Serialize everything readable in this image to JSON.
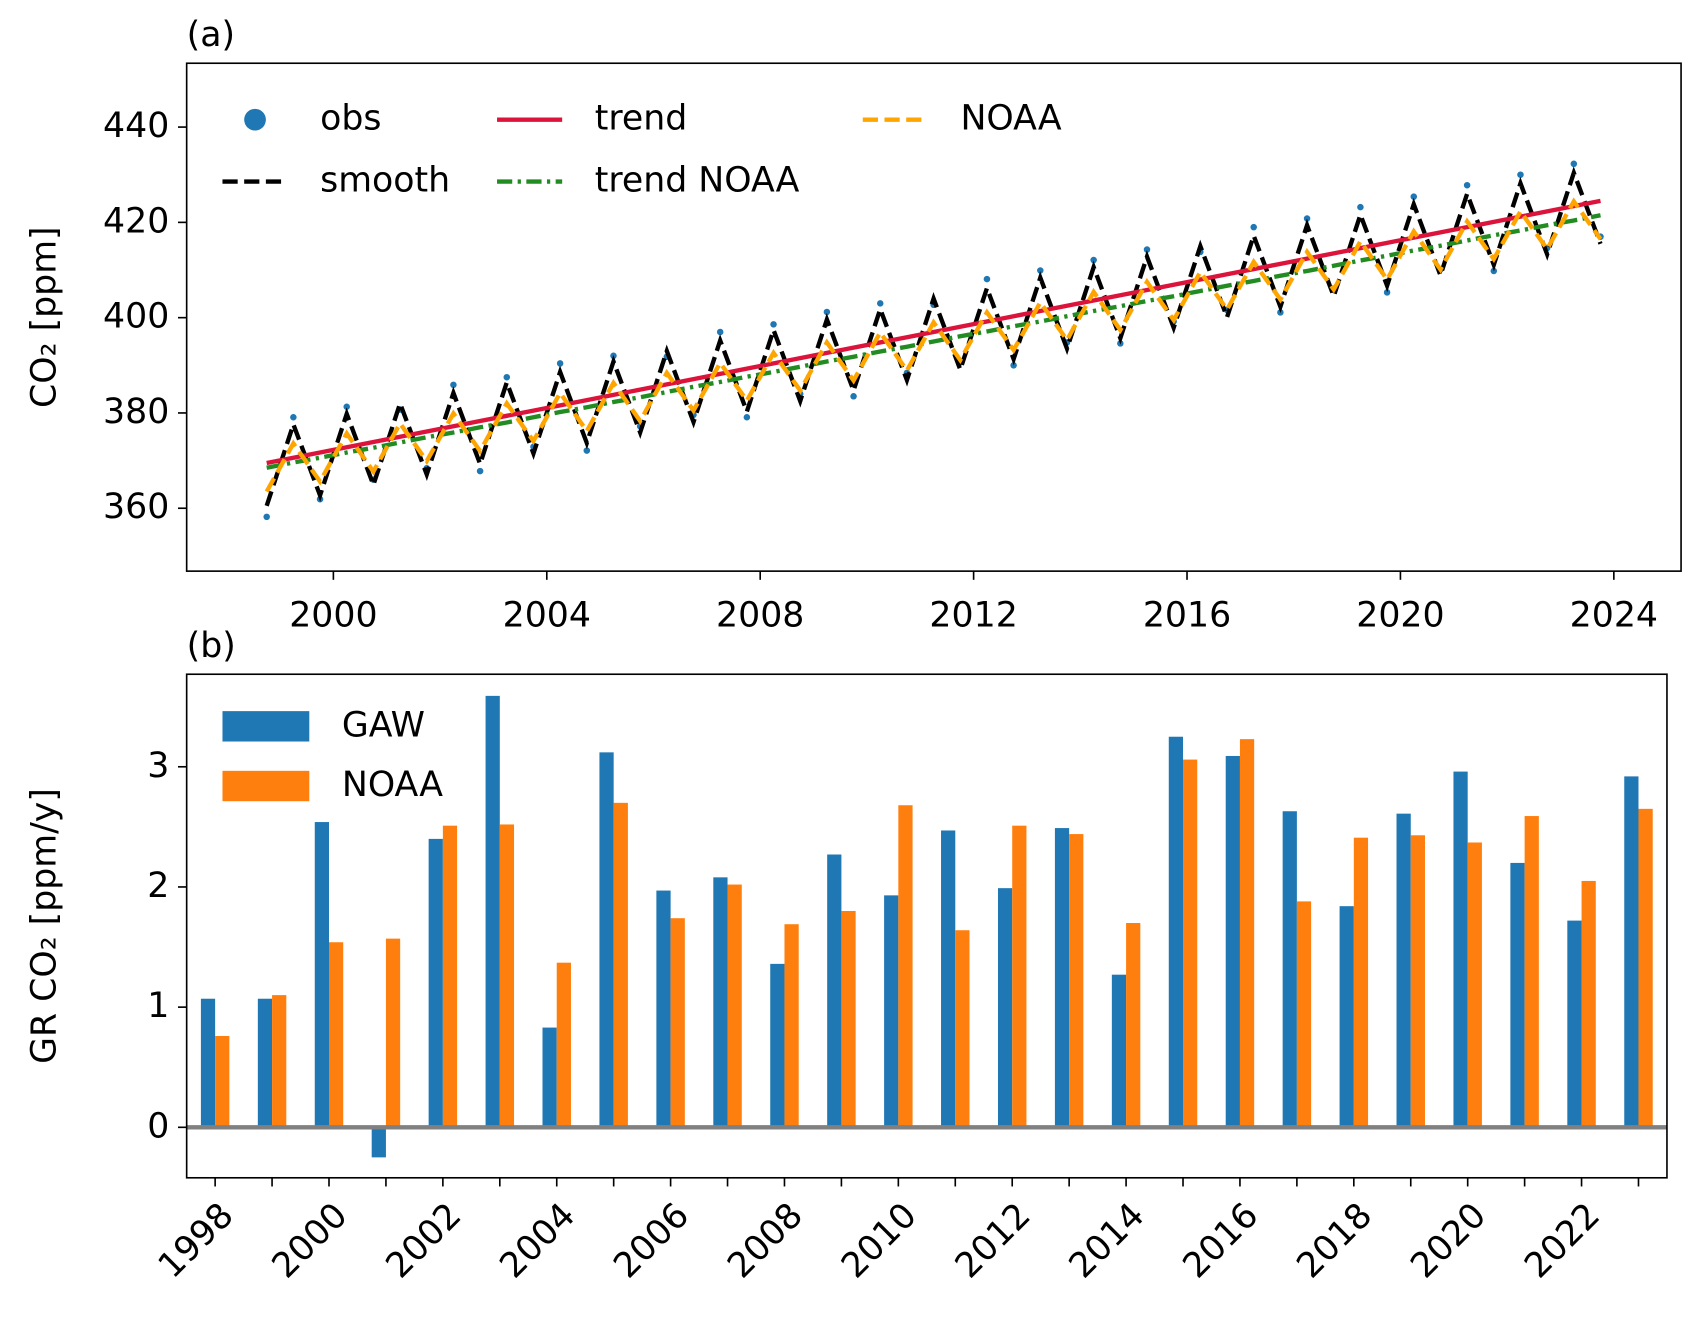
{
  "chart_data": [
    {
      "type": "line",
      "title": "(a)",
      "y_label": "CO₂ [ppm]",
      "x": [
        1998.75,
        1999.25,
        1999.75,
        2000.25,
        2000.75,
        2001.25,
        2001.75,
        2002.25,
        2002.75,
        2003.25,
        2003.75,
        2004.25,
        2004.75,
        2005.25,
        2005.75,
        2006.25,
        2006.75,
        2007.25,
        2007.75,
        2008.25,
        2008.75,
        2009.25,
        2009.75,
        2010.25,
        2010.75,
        2011.25,
        2011.75,
        2012.25,
        2012.75,
        2013.25,
        2013.75,
        2014.25,
        2014.75,
        2015.25,
        2015.75,
        2016.25,
        2016.75,
        2017.25,
        2017.75,
        2018.25,
        2018.75,
        2019.25,
        2019.75,
        2020.25,
        2020.75,
        2021.25,
        2021.75,
        2022.25,
        2022.75,
        2023.25,
        2023.75
      ],
      "series": [
        {
          "name": "obs",
          "color": "#1f77b4",
          "style": "dot",
          "values": [
            358.2,
            379.1,
            361.9,
            381.3,
            366.0,
            380.7,
            368.4,
            385.9,
            367.8,
            387.5,
            372.9,
            390.4,
            372.1,
            392.0,
            377.2,
            391.8,
            379.6,
            397.0,
            379.1,
            398.6,
            384.0,
            401.2,
            383.5,
            403.0,
            388.4,
            402.7,
            390.6,
            408.1,
            390.0,
            409.9,
            394.8,
            412.1,
            394.6,
            414.3,
            399.2,
            413.8,
            401.6,
            419.0,
            401.1,
            420.8,
            406.0,
            423.2,
            405.3,
            425.4,
            410.1,
            427.8,
            409.8,
            430.0,
            414.6,
            432.3,
            417.0
          ]
        },
        {
          "name": "smooth",
          "color": "#000000",
          "style": "dashed",
          "values": [
            360.5,
            377.6,
            362.7,
            379.8,
            364.9,
            382.0,
            367.1,
            384.2,
            369.3,
            386.4,
            371.5,
            388.6,
            373.7,
            390.8,
            375.9,
            393.0,
            378.1,
            395.2,
            380.3,
            397.4,
            382.5,
            399.6,
            384.7,
            401.8,
            386.9,
            404.0,
            389.1,
            406.2,
            391.3,
            408.4,
            393.5,
            410.6,
            395.7,
            412.8,
            397.9,
            415.0,
            400.1,
            417.2,
            402.3,
            419.4,
            404.5,
            421.6,
            406.7,
            423.8,
            408.9,
            426.0,
            411.1,
            428.2,
            413.3,
            430.4,
            415.5
          ]
        },
        {
          "name": "trend",
          "color": "#dc143c",
          "style": "solid",
          "values": [
            369.5,
            370.6,
            371.7,
            372.8,
            373.9,
            375.0,
            376.1,
            377.2,
            378.3,
            379.4,
            380.5,
            381.6,
            382.7,
            383.8,
            384.9,
            386.0,
            387.1,
            388.2,
            389.3,
            390.4,
            391.5,
            392.6,
            393.7,
            394.8,
            395.9,
            397.0,
            398.1,
            399.2,
            400.3,
            401.4,
            402.5,
            403.6,
            404.7,
            405.8,
            406.9,
            408.0,
            409.1,
            410.2,
            411.3,
            412.4,
            413.5,
            414.6,
            415.7,
            416.8,
            417.9,
            419.0,
            420.1,
            421.2,
            422.3,
            423.4,
            424.5
          ]
        },
        {
          "name": "trend NOAA",
          "color": "#228b22",
          "style": "dashdot",
          "values": [
            368.5,
            369.6,
            370.6,
            371.7,
            372.7,
            373.8,
            374.9,
            375.9,
            377.0,
            378.0,
            379.1,
            380.2,
            381.2,
            382.3,
            383.3,
            384.4,
            385.5,
            386.5,
            387.6,
            388.6,
            389.7,
            390.8,
            391.8,
            392.9,
            393.9,
            395.0,
            396.1,
            397.1,
            398.2,
            399.2,
            400.3,
            401.4,
            402.4,
            403.5,
            404.5,
            405.6,
            406.7,
            407.7,
            408.8,
            409.8,
            410.9,
            412.0,
            413.0,
            414.1,
            415.1,
            416.2,
            417.3,
            418.3,
            419.4,
            420.4,
            421.5
          ]
        },
        {
          "name": "NOAA",
          "color": "#ffa500",
          "style": "dashed",
          "values": [
            363.5,
            373.6,
            365.6,
            375.7,
            367.7,
            377.8,
            369.9,
            379.9,
            372.0,
            382.0,
            374.1,
            384.2,
            376.2,
            386.3,
            378.3,
            388.4,
            380.5,
            390.5,
            382.6,
            392.6,
            384.7,
            394.8,
            386.8,
            396.9,
            388.9,
            399.0,
            391.1,
            401.1,
            393.2,
            403.2,
            395.3,
            405.4,
            397.4,
            407.5,
            399.5,
            409.6,
            401.7,
            411.7,
            403.8,
            413.8,
            405.9,
            416.0,
            408.0,
            418.1,
            410.1,
            420.2,
            412.3,
            422.3,
            414.4,
            424.4,
            416.5
          ]
        }
      ],
      "xlim": [
        1997.25,
        2025.26
      ],
      "xticks": [
        2000,
        2004,
        2008,
        2012,
        2016,
        2020,
        2024
      ],
      "ylim": [
        346.8,
        453.4
      ],
      "yticks": [
        360,
        380,
        400,
        420,
        440
      ],
      "legend": "upper left"
    },
    {
      "type": "bar",
      "title": "(b)",
      "y_label": "GR CO₂ [ppm/y]",
      "categories": [
        "1998",
        null,
        "2000",
        null,
        "2002",
        null,
        "2004",
        null,
        "2006",
        null,
        "2008",
        null,
        "2010",
        null,
        "2012",
        null,
        "2014",
        null,
        "2016",
        null,
        "2018",
        null,
        "2020",
        null,
        "2022",
        null
      ],
      "series": [
        {
          "name": "GAW",
          "color": "#1f77b4",
          "values": [
            1.07,
            1.07,
            2.54,
            -0.25,
            2.4,
            3.59,
            0.83,
            3.12,
            1.97,
            2.08,
            1.36,
            2.27,
            1.93,
            2.47,
            1.99,
            2.49,
            1.27,
            3.25,
            3.09,
            2.63,
            1.84,
            2.61,
            2.96,
            2.2,
            1.72,
            2.92
          ]
        },
        {
          "name": "NOAA",
          "color": "#ff7f0e",
          "values": [
            0.76,
            1.1,
            1.54,
            1.57,
            2.51,
            2.52,
            1.37,
            2.7,
            1.74,
            2.02,
            1.69,
            1.8,
            2.68,
            1.64,
            2.51,
            2.44,
            1.7,
            3.06,
            3.23,
            1.88,
            2.41,
            2.43,
            2.37,
            2.59,
            2.05,
            2.65
          ]
        }
      ],
      "ylim": [
        -0.42,
        3.77
      ],
      "yticks": [
        0,
        1,
        2,
        3
      ],
      "legend": "upper left"
    }
  ]
}
